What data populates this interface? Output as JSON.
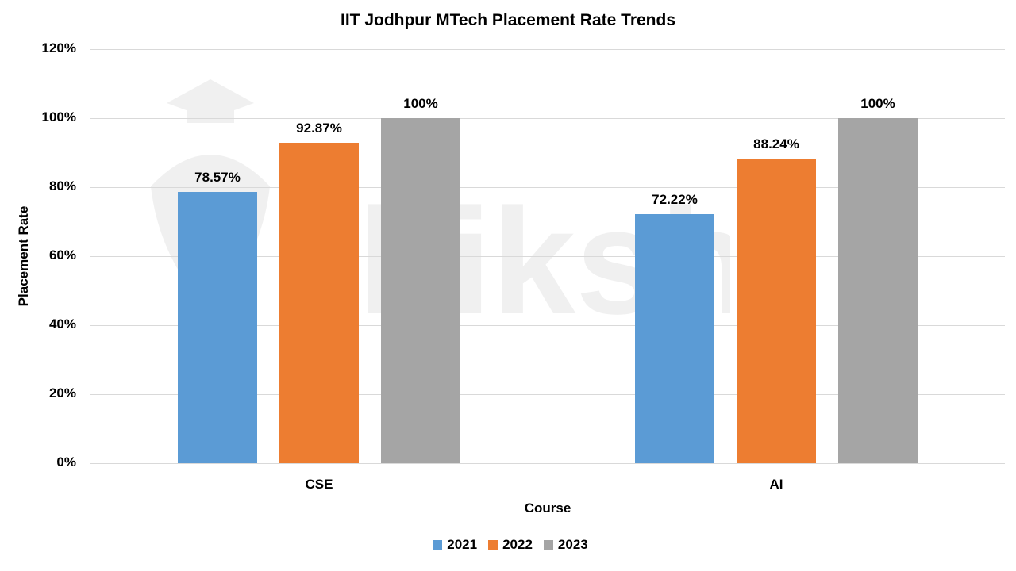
{
  "chart_data": {
    "type": "bar",
    "title": "IIT Jodhpur MTech Placement Rate Trends",
    "xlabel": "Course",
    "ylabel": "Placement Rate",
    "categories": [
      "CSE",
      "AI"
    ],
    "series": [
      {
        "name": "2021",
        "color": "#5b9bd5",
        "values": [
          78.57,
          72.22
        ],
        "labels": [
          "78.57%",
          "72.22%"
        ]
      },
      {
        "name": "2022",
        "color": "#ed7d31",
        "values": [
          92.87,
          88.24
        ],
        "labels": [
          "92.87%",
          "88.24%"
        ]
      },
      {
        "name": "2023",
        "color": "#a5a5a5",
        "values": [
          100,
          100
        ],
        "labels": [
          "100%",
          "100%"
        ]
      }
    ],
    "ylim": [
      0,
      120
    ],
    "yticks": [
      "0%",
      "20%",
      "40%",
      "60%",
      "80%",
      "100%",
      "120%"
    ],
    "grid": true,
    "legend_position": "bottom"
  },
  "watermark": "shiksha"
}
